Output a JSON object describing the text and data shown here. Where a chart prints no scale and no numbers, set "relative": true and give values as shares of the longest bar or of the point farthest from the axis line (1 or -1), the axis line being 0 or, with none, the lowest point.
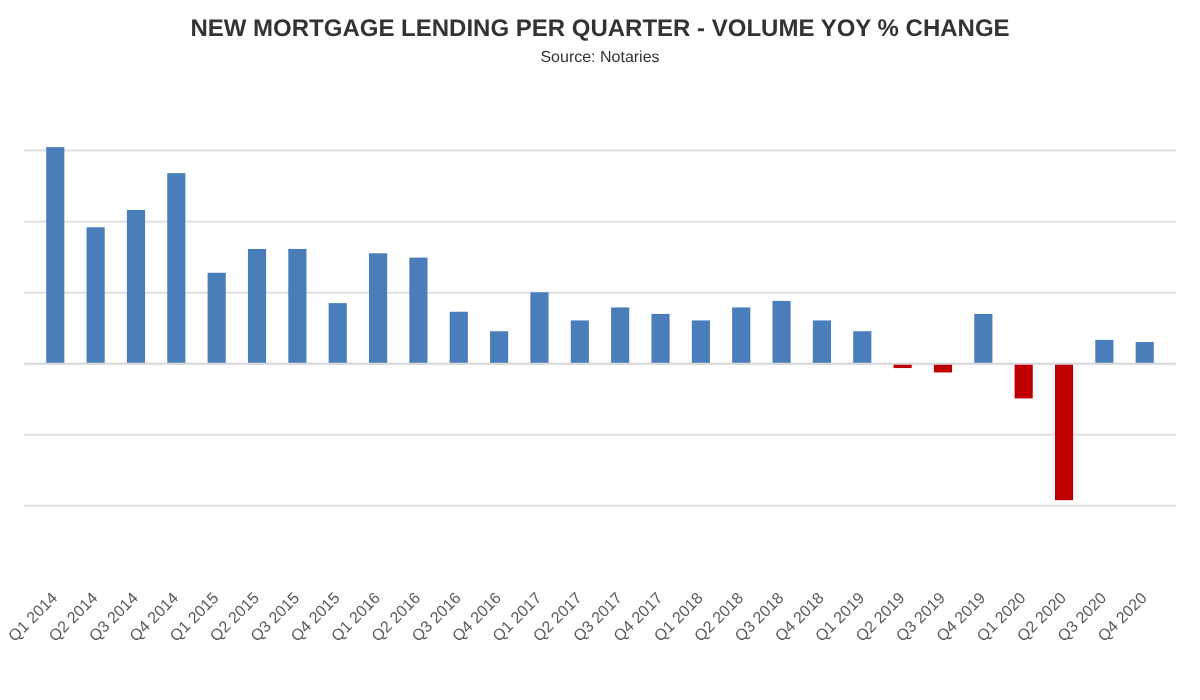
{
  "chart_data": {
    "type": "bar",
    "title": "NEW MORTGAGE LENDING PER QUARTER - VOLUME YOY % CHANGE",
    "annotations": [
      "Source: Notaries"
    ],
    "relative": true,
    "grid": "y",
    "categories": [
      "Q1 2014",
      "Q2 2014",
      "Q3 2014",
      "Q4 2014",
      "Q1 2015",
      "Q2 2015",
      "Q3 2015",
      "Q4 2015",
      "Q1 2016",
      "Q2 2016",
      "Q3 2016",
      "Q4 2016",
      "Q1 2017",
      "Q2 2017",
      "Q3 2017",
      "Q4 2017",
      "Q1 2018",
      "Q2 2018",
      "Q3 2018",
      "Q4 2018",
      "Q1 2019",
      "Q2 2019",
      "Q3 2019",
      "Q4 2019",
      "Q1 2020",
      "Q2 2020",
      "Q3 2020",
      "Q4 2020"
    ],
    "values": [
      1,
      0.63,
      0.71,
      0.88,
      0.42,
      0.53,
      0.53,
      0.28,
      0.51,
      0.49,
      0.24,
      0.15,
      0.33,
      0.2,
      0.26,
      0.23,
      0.2,
      0.26,
      0.29,
      0.2,
      0.15,
      -0.02,
      -0.04,
      0.23,
      -0.16,
      -0.63,
      0.11,
      0.1
    ],
    "colors": [
      "#4a7ebb",
      "#4a7ebb",
      "#4a7ebb",
      "#4a7ebb",
      "#4a7ebb",
      "#4a7ebb",
      "#4a7ebb",
      "#4a7ebb",
      "#4a7ebb",
      "#4a7ebb",
      "#4a7ebb",
      "#4a7ebb",
      "#4a7ebb",
      "#4a7ebb",
      "#4a7ebb",
      "#4a7ebb",
      "#4a7ebb",
      "#4a7ebb",
      "#4a7ebb",
      "#4a7ebb",
      "#4a7ebb",
      "#c00000",
      "#c00000",
      "#4a7ebb",
      "#c00000",
      "#c00000",
      "#4a7ebb",
      "#4a7ebb"
    ]
  }
}
